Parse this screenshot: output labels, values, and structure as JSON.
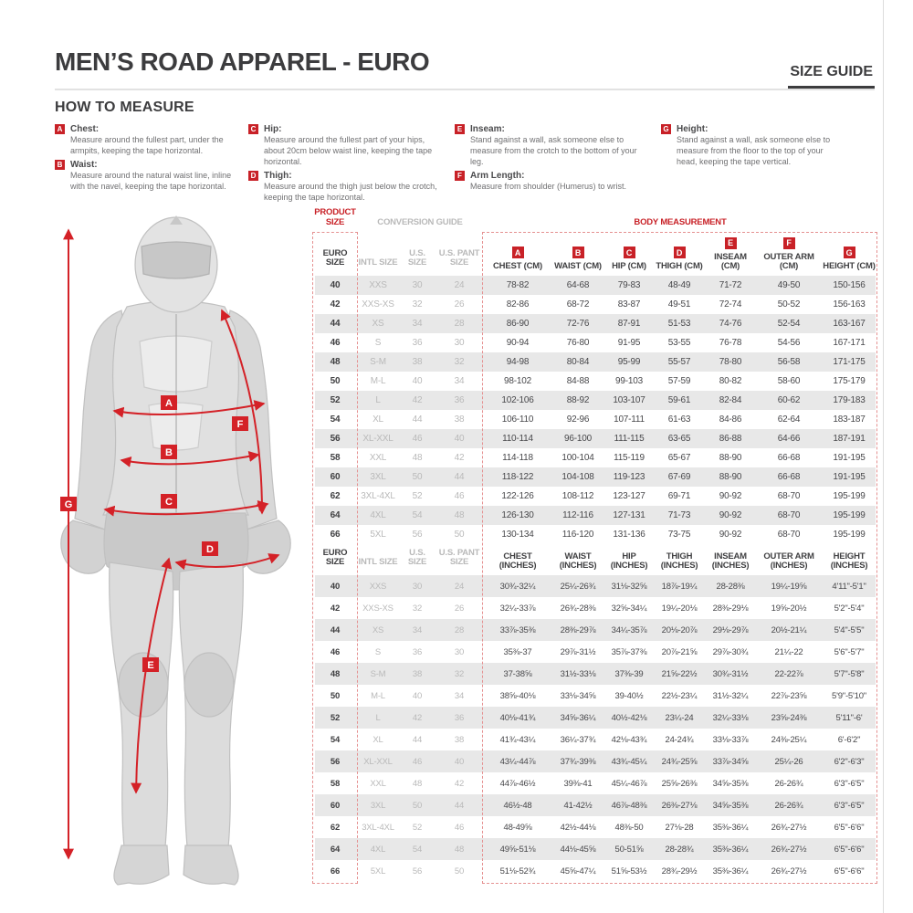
{
  "colors": {
    "accent_red": "#c82127",
    "text_dark": "#3c3c3e",
    "muted_gray": "#b9b9b9",
    "row_stripe": "#e8e8e8"
  },
  "header": {
    "title": "MEN’S ROAD APPAREL - EURO",
    "size_guide_label": "SIZE GUIDE"
  },
  "how_to_measure": {
    "title": "HOW TO MEASURE",
    "items": [
      {
        "letter": "A",
        "label": "Chest:",
        "description": "Measure around the fullest part, under the armpits, keeping the tape horizontal."
      },
      {
        "letter": "B",
        "label": "Waist:",
        "description": "Measure around the natural waist line, inline with the navel, keeping the tape horizontal."
      },
      {
        "letter": "C",
        "label": "Hip:",
        "description": "Measure around the fullest part of your hips, about 20cm below waist line, keeping the tape horizontal."
      },
      {
        "letter": "D",
        "label": "Thigh:",
        "description": "Measure around the thigh just below the crotch, keeping the tape horizontal."
      },
      {
        "letter": "E",
        "label": "Inseam:",
        "description": "Stand against a wall, ask someone else to measure from the crotch to the bottom of your leg."
      },
      {
        "letter": "F",
        "label": "Arm Length:",
        "description": "Measure from shoulder (Humerus) to wrist."
      },
      {
        "letter": "G",
        "label": "Height:",
        "description": "Stand against a wall, ask someone else to measure from the floor to the top of your head, keeping the tape vertical."
      }
    ]
  },
  "figure": {
    "badges": [
      "A",
      "B",
      "C",
      "D",
      "E",
      "F",
      "G"
    ]
  },
  "table": {
    "group_headers": {
      "product_size": "PRODUCT SIZE",
      "conversion_guide": "CONVERSION GUIDE",
      "body_measurement": "BODY MEASUREMENT"
    },
    "cm_headers": [
      {
        "letter": "",
        "label": "EURO SIZE"
      },
      {
        "letter": "",
        "label": "INTL SIZE"
      },
      {
        "letter": "",
        "label": "U.S. SIZE"
      },
      {
        "letter": "",
        "label": "U.S. PANT SIZE"
      },
      {
        "letter": "A",
        "label": "CHEST (CM)"
      },
      {
        "letter": "B",
        "label": "WAIST (CM)"
      },
      {
        "letter": "C",
        "label": "HIP (CM)"
      },
      {
        "letter": "D",
        "label": "THIGH (CM)"
      },
      {
        "letter": "E",
        "label": "INSEAM (CM)"
      },
      {
        "letter": "F",
        "label": "OUTER ARM (CM)"
      },
      {
        "letter": "G",
        "label": "HEIGHT (CM)"
      }
    ],
    "cm_rows": [
      [
        "40",
        "XXS",
        "30",
        "24",
        "78-82",
        "64-68",
        "79-83",
        "48-49",
        "71-72",
        "49-50",
        "150-156"
      ],
      [
        "42",
        "XXS-XS",
        "32",
        "26",
        "82-86",
        "68-72",
        "83-87",
        "49-51",
        "72-74",
        "50-52",
        "156-163"
      ],
      [
        "44",
        "XS",
        "34",
        "28",
        "86-90",
        "72-76",
        "87-91",
        "51-53",
        "74-76",
        "52-54",
        "163-167"
      ],
      [
        "46",
        "S",
        "36",
        "30",
        "90-94",
        "76-80",
        "91-95",
        "53-55",
        "76-78",
        "54-56",
        "167-171"
      ],
      [
        "48",
        "S-M",
        "38",
        "32",
        "94-98",
        "80-84",
        "95-99",
        "55-57",
        "78-80",
        "56-58",
        "171-175"
      ],
      [
        "50",
        "M-L",
        "40",
        "34",
        "98-102",
        "84-88",
        "99-103",
        "57-59",
        "80-82",
        "58-60",
        "175-179"
      ],
      [
        "52",
        "L",
        "42",
        "36",
        "102-106",
        "88-92",
        "103-107",
        "59-61",
        "82-84",
        "60-62",
        "179-183"
      ],
      [
        "54",
        "XL",
        "44",
        "38",
        "106-110",
        "92-96",
        "107-111",
        "61-63",
        "84-86",
        "62-64",
        "183-187"
      ],
      [
        "56",
        "XL-XXL",
        "46",
        "40",
        "110-114",
        "96-100",
        "111-115",
        "63-65",
        "86-88",
        "64-66",
        "187-191"
      ],
      [
        "58",
        "XXL",
        "48",
        "42",
        "114-118",
        "100-104",
        "115-119",
        "65-67",
        "88-90",
        "66-68",
        "191-195"
      ],
      [
        "60",
        "3XL",
        "50",
        "44",
        "118-122",
        "104-108",
        "119-123",
        "67-69",
        "88-90",
        "66-68",
        "191-195"
      ],
      [
        "62",
        "3XL-4XL",
        "52",
        "46",
        "122-126",
        "108-112",
        "123-127",
        "69-71",
        "90-92",
        "68-70",
        "195-199"
      ],
      [
        "64",
        "4XL",
        "54",
        "48",
        "126-130",
        "112-116",
        "127-131",
        "71-73",
        "90-92",
        "68-70",
        "195-199"
      ],
      [
        "66",
        "5XL",
        "56",
        "50",
        "130-134",
        "116-120",
        "131-136",
        "73-75",
        "90-92",
        "68-70",
        "195-199"
      ]
    ],
    "inch_headers": [
      {
        "label": "EURO SIZE"
      },
      {
        "label": "INTL SIZE"
      },
      {
        "label": "U.S. SIZE"
      },
      {
        "label": "U.S. PANT SIZE"
      },
      {
        "label": "CHEST (INCHES)"
      },
      {
        "label": "WAIST (INCHES)"
      },
      {
        "label": "HIP (INCHES)"
      },
      {
        "label": "THIGH (INCHES)"
      },
      {
        "label": "INSEAM (INCHES)"
      },
      {
        "label": "OUTER ARM (INCHES)"
      },
      {
        "label": "HEIGHT (INCHES)"
      }
    ],
    "inch_rows": [
      [
        "40",
        "XXS",
        "30",
        "24",
        "30¾-32¼",
        "25¼-26¾",
        "31⅛-32⅝",
        "18⅞-19¼",
        "28-28⅜",
        "19¼-19⅝",
        "4'11\"-5'1\""
      ],
      [
        "42",
        "XXS-XS",
        "32",
        "26",
        "32¼-33⅞",
        "26¾-28⅜",
        "32⅝-34¼",
        "19¼-20⅛",
        "28⅜-29⅛",
        "19⅝-20½",
        "5'2\"-5'4\""
      ],
      [
        "44",
        "XS",
        "34",
        "28",
        "33⅞-35⅜",
        "28⅜-29⅞",
        "34¼-35⅞",
        "20⅛-20⅞",
        "29⅛-29⅞",
        "20½-21¼",
        "5'4\"-5'5\""
      ],
      [
        "46",
        "S",
        "36",
        "30",
        "35⅜-37",
        "29⅞-31½",
        "35⅞-37⅜",
        "20⅞-21⅝",
        "29⅞-30¾",
        "21¼-22",
        "5'6\"-5'7\""
      ],
      [
        "48",
        "S-M",
        "38",
        "32",
        "37-38⅝",
        "31½-33⅛",
        "37⅜-39",
        "21⅝-22½",
        "30¾-31½",
        "22-22⅞",
        "5'7\"-5'8\""
      ],
      [
        "50",
        "M-L",
        "40",
        "34",
        "38⅝-40⅛",
        "33⅛-34⅝",
        "39-40½",
        "22½-23¼",
        "31½-32¼",
        "22⅞-23⅝",
        "5'9\"-5'10\""
      ],
      [
        "52",
        "L",
        "42",
        "36",
        "40⅛-41¾",
        "34⅝-36¼",
        "40½-42⅛",
        "23¼-24",
        "32¼-33⅛",
        "23⅝-24⅜",
        "5'11\"-6'"
      ],
      [
        "54",
        "XL",
        "44",
        "38",
        "41¾-43¼",
        "36¼-37¾",
        "42⅛-43¾",
        "24-24¾",
        "33⅛-33⅞",
        "24⅜-25¼",
        "6'-6'2\""
      ],
      [
        "56",
        "XL-XXL",
        "46",
        "40",
        "43¼-44⅞",
        "37¾-39⅜",
        "43¾-45¼",
        "24¾-25⅝",
        "33⅞-34⅝",
        "25¼-26",
        "6'2\"-6'3\""
      ],
      [
        "58",
        "XXL",
        "48",
        "42",
        "44⅞-46½",
        "39⅜-41",
        "45¼-46⅞",
        "25⅝-26⅜",
        "34⅝-35⅜",
        "26-26¾",
        "6'3\"-6'5\""
      ],
      [
        "60",
        "3XL",
        "50",
        "44",
        "46½-48",
        "41-42½",
        "46⅞-48⅜",
        "26⅜-27⅛",
        "34⅝-35⅜",
        "26-26¾",
        "6'3\"-6'5\""
      ],
      [
        "62",
        "3XL-4XL",
        "52",
        "46",
        "48-49⅝",
        "42½-44⅛",
        "48⅜-50",
        "27⅛-28",
        "35⅜-36¼",
        "26¾-27½",
        "6'5\"-6'6\""
      ],
      [
        "64",
        "4XL",
        "54",
        "48",
        "49⅝-51⅛",
        "44⅛-45⅝",
        "50-51⅝",
        "28-28¾",
        "35⅜-36¼",
        "26¾-27½",
        "6'5\"-6'6\""
      ],
      [
        "66",
        "5XL",
        "56",
        "50",
        "51⅛-52¾",
        "45⅝-47¼",
        "51⅝-53½",
        "28¾-29½",
        "35⅜-36¼",
        "26¾-27½",
        "6'5\"-6'6\""
      ]
    ]
  }
}
